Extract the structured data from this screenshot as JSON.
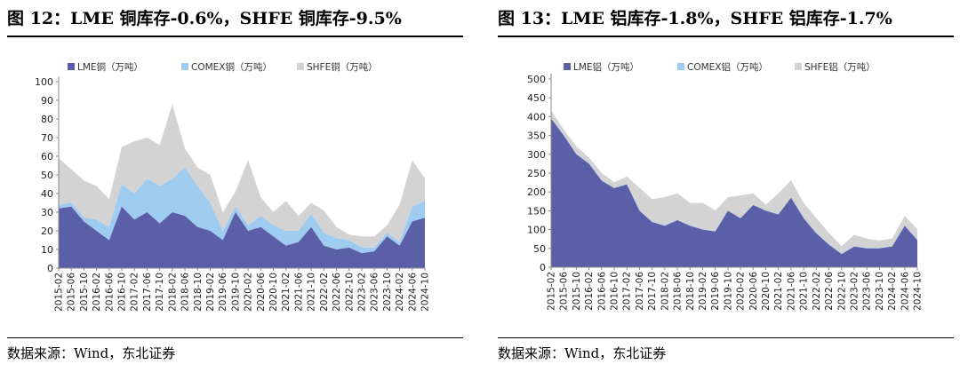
{
  "colors": {
    "lme": "#5b5fa8",
    "comex": "#9ecbf0",
    "shfe": "#d3d3d3"
  },
  "panels": [
    {
      "title": "图 12：LME 铜库存-0.6%，SHFE 铜库存-9.5%",
      "source": "数据来源：Wind，东北证券"
    },
    {
      "title": "图 13：LME 铝库存-1.8%，SHFE 铝库存-1.7%",
      "source": "数据来源：Wind，东北证券"
    }
  ],
  "chart_data": [
    {
      "type": "area",
      "stacked": true,
      "legend_position": "top",
      "ylim": [
        0,
        100
      ],
      "yticks": [
        0,
        10,
        20,
        30,
        40,
        50,
        60,
        70,
        80,
        90,
        100
      ],
      "categories": [
        "2015-02",
        "2015-06",
        "2015-10",
        "2016-02",
        "2016-06",
        "2016-10",
        "2017-02",
        "2017-06",
        "2017-10",
        "2018-02",
        "2018-06",
        "2018-10",
        "2019-02",
        "2019-06",
        "2019-10",
        "2020-02",
        "2020-06",
        "2020-10",
        "2021-02",
        "2021-06",
        "2021-10",
        "2022-02",
        "2022-06",
        "2022-10",
        "2023-02",
        "2023-06",
        "2023-10",
        "2024-02",
        "2024-06",
        "2024-10"
      ],
      "series": [
        {
          "name": "LME铜（万吨）",
          "color": "#5b5fa8",
          "values": [
            32,
            33,
            25,
            20,
            15,
            33,
            26,
            30,
            24,
            30,
            28,
            22,
            20,
            15,
            30,
            20,
            22,
            17,
            12,
            14,
            22,
            12,
            10,
            11,
            8,
            9,
            17,
            12,
            25,
            27
          ]
        },
        {
          "name": "COMEX铜（万吨）",
          "color": "#9ecbf0",
          "values": [
            2,
            2,
            2,
            6,
            7,
            12,
            14,
            18,
            20,
            18,
            26,
            22,
            15,
            5,
            3,
            3,
            6,
            6,
            8,
            6,
            7,
            7,
            6,
            4,
            3,
            2,
            2,
            2,
            8,
            9
          ]
        },
        {
          "name": "SHFE铜（万吨）",
          "color": "#d3d3d3",
          "values": [
            25,
            18,
            20,
            18,
            15,
            20,
            28,
            22,
            22,
            40,
            10,
            10,
            15,
            10,
            8,
            35,
            10,
            7,
            16,
            8,
            6,
            12,
            6,
            3,
            6,
            6,
            4,
            20,
            25,
            12
          ]
        }
      ]
    },
    {
      "type": "area",
      "stacked": true,
      "legend_position": "top",
      "ylim": [
        0,
        500
      ],
      "yticks": [
        0,
        50,
        100,
        150,
        200,
        250,
        300,
        350,
        400,
        450,
        500
      ],
      "categories": [
        "2015-02",
        "2015-06",
        "2015-10",
        "2016-02",
        "2016-06",
        "2016-10",
        "2017-02",
        "2017-06",
        "2017-10",
        "2018-02",
        "2018-06",
        "2018-10",
        "2019-02",
        "2019-06",
        "2019-10",
        "2020-02",
        "2020-06",
        "2020-10",
        "2021-02",
        "2021-06",
        "2021-10",
        "2022-02",
        "2022-06",
        "2022-10",
        "2023-02",
        "2023-06",
        "2023-10",
        "2024-02",
        "2024-06",
        "2024-10"
      ],
      "series": [
        {
          "name": "LME铝（万吨）",
          "color": "#5b5fa8",
          "values": [
            395,
            350,
            300,
            275,
            230,
            210,
            220,
            150,
            120,
            110,
            125,
            110,
            100,
            95,
            150,
            130,
            165,
            150,
            140,
            185,
            130,
            90,
            60,
            35,
            55,
            50,
            50,
            55,
            110,
            72
          ]
        },
        {
          "name": "COMEX铝（万吨）",
          "color": "#9ecbf0",
          "values": [
            1,
            1,
            1,
            1,
            1,
            1,
            1,
            1,
            1,
            1,
            1,
            1,
            1,
            1,
            1,
            1,
            1,
            1,
            1,
            1,
            1,
            1,
            1,
            1,
            1,
            1,
            1,
            1,
            1,
            1
          ]
        },
        {
          "name": "SHFE铝（万吨）",
          "color": "#d3d3d3",
          "values": [
            20,
            15,
            20,
            15,
            20,
            15,
            20,
            60,
            60,
            75,
            70,
            60,
            70,
            55,
            35,
            60,
            30,
            15,
            55,
            45,
            40,
            40,
            30,
            20,
            30,
            25,
            20,
            20,
            25,
            28
          ]
        }
      ]
    }
  ]
}
